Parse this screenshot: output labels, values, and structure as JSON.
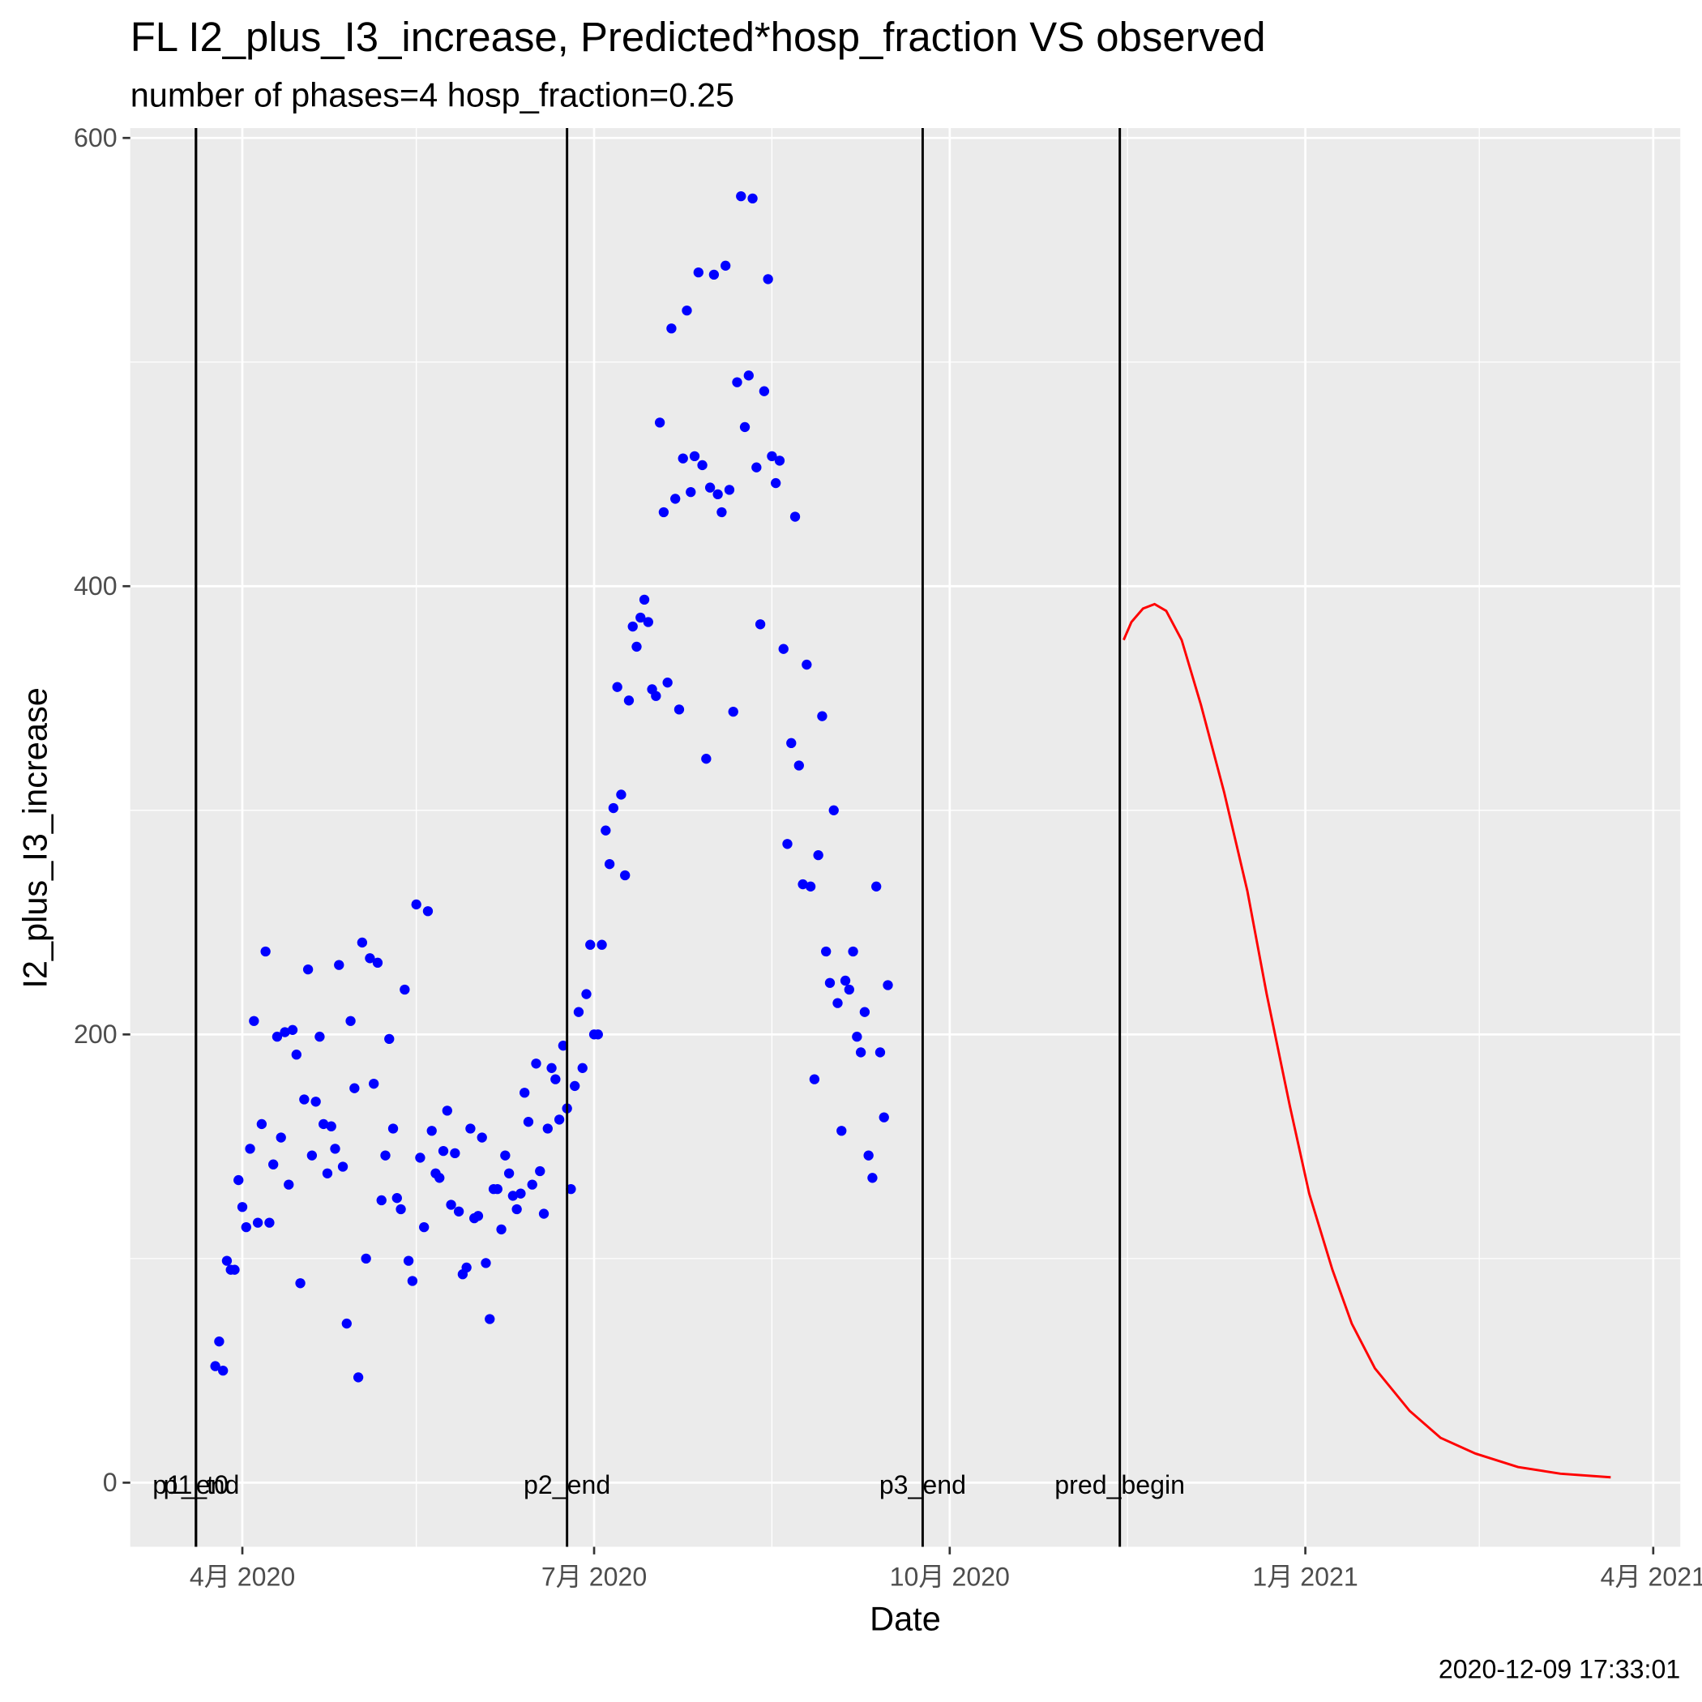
{
  "chart_data": {
    "type": "scatter",
    "title": "FL I2_plus_I3_increase, Predicted*hosp_fraction VS observed",
    "subtitle": "number of phases=4   hosp_fraction=0.25",
    "xlabel": "Date",
    "ylabel": "I2_plus_I3_increase",
    "caption": "2020-12-09 17:33:01",
    "grid": true,
    "xlim": [
      "2020-03-03",
      "2021-04-08"
    ],
    "ylim": [
      -28.6,
      604.4
    ],
    "xticks": [
      {
        "value": "2020-04-01",
        "label": "4月 2020"
      },
      {
        "value": "2020-07-01",
        "label": "7月 2020"
      },
      {
        "value": "2020-10-01",
        "label": "10月 2020"
      },
      {
        "value": "2021-01-01",
        "label": "1月 2021"
      },
      {
        "value": "2021-04-01",
        "label": "4月 2021"
      }
    ],
    "xminorticks": [
      "2020-05-16",
      "2020-08-16",
      "2020-11-16",
      "2021-02-15"
    ],
    "yticks": [
      0,
      200,
      400,
      600
    ],
    "yminorticks": [
      100,
      300,
      500
    ],
    "vlines": [
      {
        "x": "2020-03-20",
        "label": "p1_t0"
      },
      {
        "x": "2020-03-20",
        "label": "p1_end"
      },
      {
        "x": "2020-06-24",
        "label": "p2_end"
      },
      {
        "x": "2020-09-24",
        "label": "p3_end"
      },
      {
        "x": "2020-11-14",
        "label": "pred_begin"
      }
    ],
    "series": [
      {
        "type": "scatter",
        "color": "#0000ff",
        "x": [
          "2020-03-25",
          "2020-03-26",
          "2020-03-27",
          "2020-03-28",
          "2020-03-29",
          "2020-03-30",
          "2020-03-31",
          "2020-04-01",
          "2020-04-02",
          "2020-04-03",
          "2020-04-04",
          "2020-04-05",
          "2020-04-06",
          "2020-04-07",
          "2020-04-08",
          "2020-04-09",
          "2020-04-10",
          "2020-04-11",
          "2020-04-12",
          "2020-04-13",
          "2020-04-14",
          "2020-04-15",
          "2020-04-16",
          "2020-04-17",
          "2020-04-18",
          "2020-04-19",
          "2020-04-20",
          "2020-04-21",
          "2020-04-22",
          "2020-04-23",
          "2020-04-24",
          "2020-04-25",
          "2020-04-26",
          "2020-04-27",
          "2020-04-28",
          "2020-04-29",
          "2020-04-30",
          "2020-05-01",
          "2020-05-02",
          "2020-05-03",
          "2020-05-04",
          "2020-05-05",
          "2020-05-06",
          "2020-05-07",
          "2020-05-08",
          "2020-05-09",
          "2020-05-10",
          "2020-05-11",
          "2020-05-12",
          "2020-05-13",
          "2020-05-14",
          "2020-05-15",
          "2020-05-16",
          "2020-05-17",
          "2020-05-18",
          "2020-05-19",
          "2020-05-20",
          "2020-05-21",
          "2020-05-22",
          "2020-05-23",
          "2020-05-24",
          "2020-05-25",
          "2020-05-26",
          "2020-05-27",
          "2020-05-28",
          "2020-05-29",
          "2020-05-30",
          "2020-05-31",
          "2020-06-01",
          "2020-06-02",
          "2020-06-03",
          "2020-06-04",
          "2020-06-05",
          "2020-06-06",
          "2020-06-07",
          "2020-06-08",
          "2020-06-09",
          "2020-06-10",
          "2020-06-11",
          "2020-06-12",
          "2020-06-13",
          "2020-06-14",
          "2020-06-15",
          "2020-06-16",
          "2020-06-17",
          "2020-06-18",
          "2020-06-19",
          "2020-06-20",
          "2020-06-21",
          "2020-06-22",
          "2020-06-23",
          "2020-06-24",
          "2020-06-25",
          "2020-06-26",
          "2020-06-27",
          "2020-06-28",
          "2020-06-29",
          "2020-06-30",
          "2020-07-01",
          "2020-07-02",
          "2020-07-03",
          "2020-07-04",
          "2020-07-05",
          "2020-07-06",
          "2020-07-07",
          "2020-07-08",
          "2020-07-09",
          "2020-07-10",
          "2020-07-11",
          "2020-07-12",
          "2020-07-13",
          "2020-07-14",
          "2020-07-15",
          "2020-07-16",
          "2020-07-17",
          "2020-07-18",
          "2020-07-19",
          "2020-07-20",
          "2020-07-21",
          "2020-07-22",
          "2020-07-23",
          "2020-07-24",
          "2020-07-25",
          "2020-07-26",
          "2020-07-27",
          "2020-07-28",
          "2020-07-29",
          "2020-07-30",
          "2020-07-31",
          "2020-08-01",
          "2020-08-02",
          "2020-08-03",
          "2020-08-04",
          "2020-08-05",
          "2020-08-06",
          "2020-08-07",
          "2020-08-08",
          "2020-08-09",
          "2020-08-10",
          "2020-08-11",
          "2020-08-12",
          "2020-08-13",
          "2020-08-14",
          "2020-08-15",
          "2020-08-16",
          "2020-08-17",
          "2020-08-18",
          "2020-08-19",
          "2020-08-20",
          "2020-08-21",
          "2020-08-22",
          "2020-08-23",
          "2020-08-24",
          "2020-08-25",
          "2020-08-26",
          "2020-08-27",
          "2020-08-28",
          "2020-08-29",
          "2020-08-30",
          "2020-08-31",
          "2020-09-01",
          "2020-09-02",
          "2020-09-03",
          "2020-09-04",
          "2020-09-05",
          "2020-09-06",
          "2020-09-07",
          "2020-09-08",
          "2020-09-09",
          "2020-09-10",
          "2020-09-11",
          "2020-09-12",
          "2020-09-13",
          "2020-09-14",
          "2020-09-15"
        ],
        "values": [
          52,
          63,
          50,
          99,
          95,
          95,
          135,
          123,
          114,
          149,
          206,
          116,
          160,
          237,
          116,
          142,
          199,
          154,
          201,
          133,
          202,
          191,
          89,
          171,
          229,
          146,
          170,
          199,
          160,
          138,
          159,
          149,
          231,
          141,
          71,
          206,
          176,
          47,
          241,
          100,
          234,
          178,
          232,
          126,
          146,
          198,
          158,
          127,
          122,
          220,
          99,
          90,
          258,
          145,
          114,
          255,
          157,
          138,
          136,
          148,
          166,
          124,
          147,
          121,
          93,
          96,
          158,
          118,
          119,
          154,
          98,
          73,
          131,
          131,
          113,
          146,
          138,
          128,
          122,
          129,
          174,
          161,
          133,
          187,
          139,
          120,
          158,
          185,
          180,
          162,
          195,
          167,
          131,
          177,
          210,
          185,
          218,
          240,
          200,
          200,
          240,
          291,
          276,
          301,
          355,
          307,
          271,
          349,
          382,
          373,
          386,
          394,
          384,
          354,
          351,
          473,
          433,
          357,
          515,
          439,
          345,
          457,
          523,
          442,
          458,
          540,
          454,
          323,
          444,
          539,
          441,
          433,
          543,
          443,
          344,
          491,
          574,
          471,
          494,
          573,
          453,
          383,
          487,
          537,
          458,
          446,
          456,
          372,
          285,
          330,
          431,
          320,
          267,
          365,
          266,
          180,
          280,
          342,
          237,
          223,
          300,
          214,
          157,
          224,
          220,
          237,
          199,
          192,
          210,
          146,
          136,
          266,
          192,
          163,
          222
        ]
      },
      {
        "type": "line",
        "color": "#ff0000",
        "x": [
          "2020-11-15",
          "2020-11-17",
          "2020-11-20",
          "2020-11-23",
          "2020-11-26",
          "2020-11-30",
          "2020-12-05",
          "2020-12-11",
          "2020-12-17",
          "2020-12-22",
          "2020-12-28",
          "2021-01-02",
          "2021-01-08",
          "2021-01-13",
          "2021-01-19",
          "2021-01-28",
          "2021-02-05",
          "2021-02-14",
          "2021-02-25",
          "2021-03-08",
          "2021-03-21"
        ],
        "values": [
          376,
          384,
          390,
          392,
          389,
          376,
          347,
          308,
          264,
          218,
          168,
          129,
          95,
          71,
          51,
          32,
          20,
          13,
          7,
          4,
          2.4
        ]
      }
    ]
  }
}
